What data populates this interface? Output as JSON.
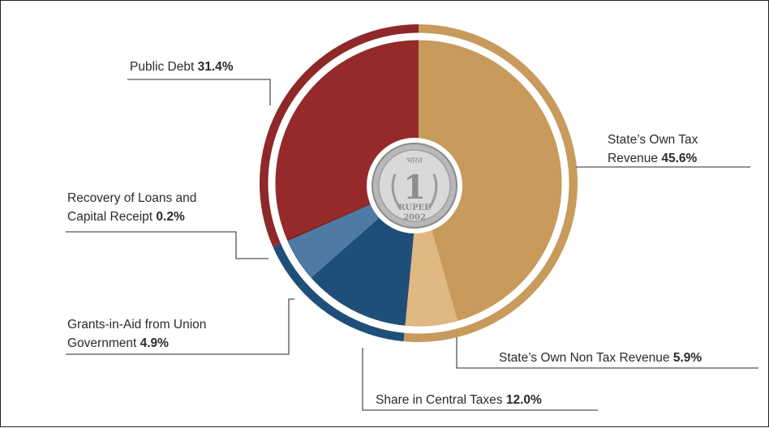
{
  "chart_data": {
    "type": "pie",
    "title": "",
    "slices": [
      {
        "name": "State’s Own Tax Revenue",
        "label_line1": "State’s Own Tax",
        "label_line2": "Revenue ",
        "pct_text": "45.6%",
        "value": 45.6,
        "outer": "#c89a5c",
        "inner": "#c89a5c"
      },
      {
        "name": "State’s Own  Non Tax Revenue",
        "label_line1": "State’s Own  Non Tax Revenue ",
        "pct_text": "5.9%",
        "value": 5.9,
        "outer": "#c89a5c",
        "inner": "#e0b882"
      },
      {
        "name": "Share in Central Taxes",
        "label_line1": "Share in Central Taxes ",
        "pct_text": "12.0%",
        "value": 12.0,
        "outer": "#1f4e79",
        "inner": "#1f4e79"
      },
      {
        "name": "Grants-in-Aid from Union Government",
        "label_line1": "Grants-in-Aid from Union",
        "label_line2": "Government ",
        "pct_text": "4.9%",
        "value": 4.9,
        "outer": "#1f4e79",
        "inner": "#4e7ba3"
      },
      {
        "name": "Recovery of Loans and Capital Receipt",
        "label_line1": "Recovery of Loans and",
        "label_line2": "Capital Receipt ",
        "pct_text": "0.2%",
        "value": 0.2,
        "outer": "#8f2828",
        "inner": "#7a2020"
      },
      {
        "name": "Public Debt",
        "label_line1": "Public Debt ",
        "pct_text": "31.4%",
        "value": 31.4,
        "outer": "#8f2828",
        "inner": "#962a2a"
      }
    ]
  },
  "coin": {
    "top_text": "भारत",
    "numeral": "1",
    "word": "RUPEE",
    "year": "2002"
  },
  "colors": {
    "leader": "#555555",
    "ring_gap": "#ffffff",
    "frame": "#222222"
  }
}
